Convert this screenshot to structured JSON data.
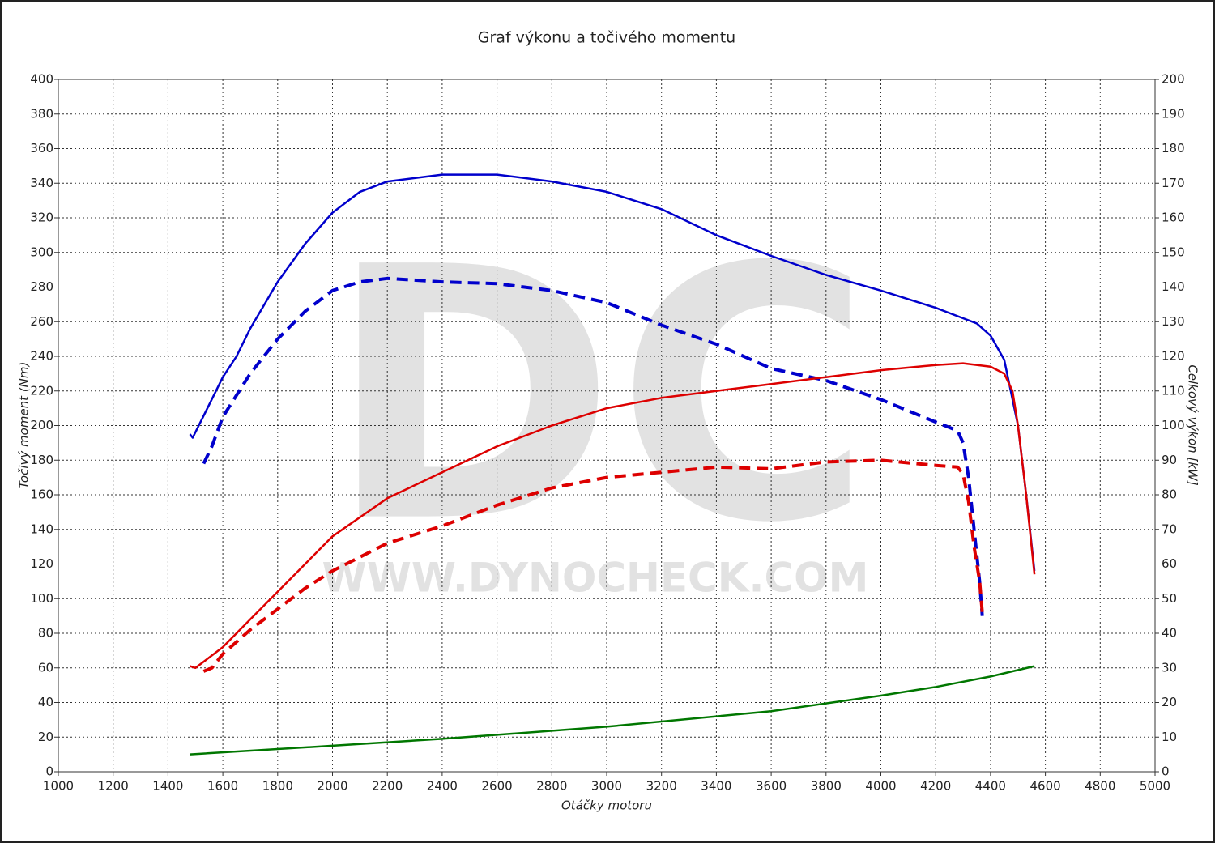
{
  "chart_data": {
    "type": "line",
    "title": "Graf výkonu a točivého momentu",
    "x_label": "Otáčky motoru",
    "y_label": "Točivý moment (Nm)",
    "y2_label": "Celkový výkon [kW]",
    "watermark": [
      "DC",
      "WWW.DYNOCHECK.COM"
    ],
    "xlim": [
      1000,
      5000
    ],
    "xticks": [
      1000,
      1200,
      1400,
      1600,
      1800,
      2000,
      2200,
      2400,
      2600,
      2800,
      3000,
      3200,
      3400,
      3600,
      3800,
      4000,
      4200,
      4400,
      4600,
      4800,
      5000
    ],
    "ylim": [
      0,
      400
    ],
    "yticks": [
      0,
      20,
      40,
      60,
      80,
      100,
      120,
      140,
      160,
      180,
      200,
      220,
      240,
      260,
      280,
      300,
      320,
      340,
      360,
      380,
      400
    ],
    "y2lim": [
      0,
      200
    ],
    "y2ticks": [
      0,
      10,
      20,
      30,
      40,
      50,
      60,
      70,
      80,
      90,
      100,
      110,
      120,
      130,
      140,
      150,
      160,
      170,
      180,
      190,
      200
    ],
    "grid": true,
    "series": [
      {
        "color": "#0000cc",
        "axis": "y",
        "dashed": false,
        "x": [
          1480,
          1490,
          1550,
          1600,
          1650,
          1700,
          1800,
          1900,
          2000,
          2100,
          2200,
          2400,
          2600,
          2800,
          3000,
          3200,
          3400,
          3600,
          3800,
          4000,
          4200,
          4300,
          4350,
          4400,
          4450,
          4500,
          4530,
          4560
        ],
        "values": [
          195,
          193,
          212,
          228,
          240,
          256,
          283,
          305,
          323,
          335,
          341,
          345,
          345,
          341,
          335,
          325,
          310,
          298,
          287,
          278,
          268,
          262,
          259,
          252,
          238,
          200,
          160,
          116
        ]
      },
      {
        "color": "#0000cc",
        "axis": "y",
        "dashed": true,
        "x": [
          1530,
          1560,
          1600,
          1700,
          1800,
          1900,
          2000,
          2100,
          2200,
          2400,
          2600,
          2800,
          3000,
          3200,
          3400,
          3600,
          3800,
          4000,
          4200,
          4280,
          4300,
          4320,
          4340,
          4360,
          4370
        ],
        "values": [
          178,
          188,
          205,
          230,
          250,
          266,
          278,
          283,
          285,
          283,
          282,
          278,
          271,
          258,
          247,
          233,
          226,
          215,
          202,
          197,
          190,
          170,
          140,
          110,
          90
        ]
      },
      {
        "color": "#dd0000",
        "axis": "y2",
        "dashed": false,
        "x": [
          1480,
          1500,
          1600,
          1700,
          1800,
          1900,
          2000,
          2200,
          2400,
          2600,
          2800,
          3000,
          3200,
          3400,
          3600,
          3800,
          4000,
          4200,
          4300,
          4400,
          4450,
          4480,
          4500,
          4530,
          4560
        ],
        "values": [
          30.5,
          30,
          36,
          44,
          52,
          60,
          68,
          79,
          86.5,
          94,
          100,
          105,
          108,
          110,
          112,
          114,
          116,
          117.5,
          118,
          117,
          115,
          110,
          100,
          80,
          57
        ]
      },
      {
        "color": "#dd0000",
        "axis": "y2",
        "dashed": true,
        "x": [
          1530,
          1560,
          1600,
          1700,
          1800,
          1900,
          2000,
          2200,
          2400,
          2600,
          2800,
          3000,
          3200,
          3400,
          3600,
          3800,
          4000,
          4200,
          4280,
          4300,
          4320,
          4340,
          4360,
          4370
        ],
        "values": [
          29,
          30,
          34,
          41,
          47,
          53,
          58,
          66,
          71,
          77,
          82,
          85,
          86.5,
          88,
          87.5,
          89.5,
          90,
          88.5,
          88,
          86,
          78,
          65,
          55,
          46
        ]
      },
      {
        "color": "#007700",
        "axis": "y2",
        "dashed": false,
        "x": [
          1480,
          2000,
          2400,
          3000,
          3600,
          4000,
          4200,
          4400,
          4560
        ],
        "values": [
          5,
          7.5,
          9.5,
          13,
          17.5,
          22,
          24.5,
          27.5,
          30.5
        ]
      }
    ]
  }
}
